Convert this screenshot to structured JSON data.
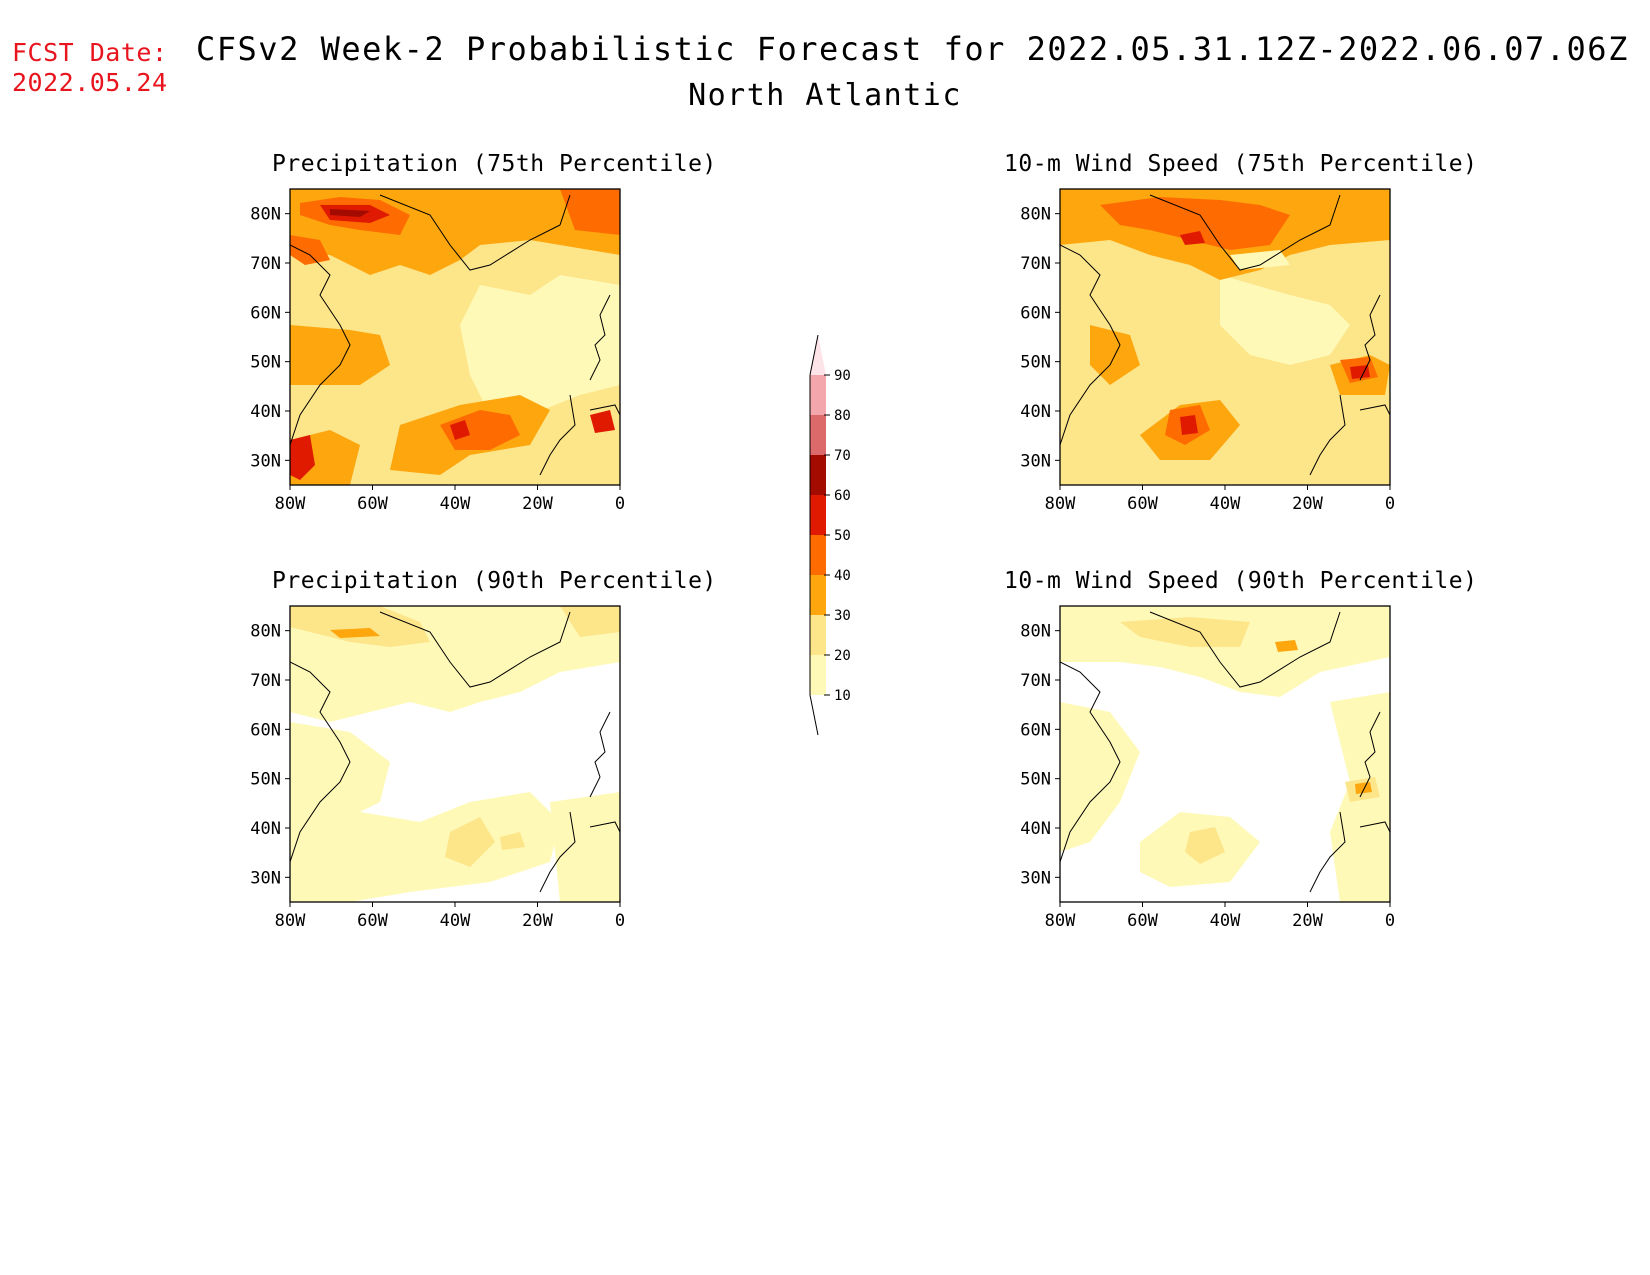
{
  "header": {
    "fcst_label": "FCST Date:",
    "fcst_date": "2022.05.24",
    "title": "CFSv2 Week-2 Probabilistic Forecast for 2022.05.31.12Z-2022.06.07.06Z",
    "subtitle": "North Atlantic"
  },
  "panels": [
    {
      "id": "precip75",
      "title": "Precipitation (75th Percentile)"
    },
    {
      "id": "wind75",
      "title": "10-m Wind Speed (75th Percentile)"
    },
    {
      "id": "precip90",
      "title": "Precipitation (90th Percentile)"
    },
    {
      "id": "wind90",
      "title": "10-m Wind Speed (90th Percentile)"
    }
  ],
  "axes": {
    "lat_labels": [
      "80N",
      "70N",
      "60N",
      "50N",
      "40N",
      "30N"
    ],
    "lon_labels": [
      "80W",
      "60W",
      "40W",
      "20W",
      "0"
    ]
  },
  "colorbar": {
    "levels": [
      "10",
      "20",
      "30",
      "40",
      "50",
      "60",
      "70",
      "80",
      "90"
    ],
    "colors": [
      "#fff9b8",
      "#fde58a",
      "#fda60e",
      "#fe6b00",
      "#e01a00",
      "#a30a00",
      "#dd6a6a",
      "#f3a7ad",
      "#fde4e8"
    ]
  }
}
